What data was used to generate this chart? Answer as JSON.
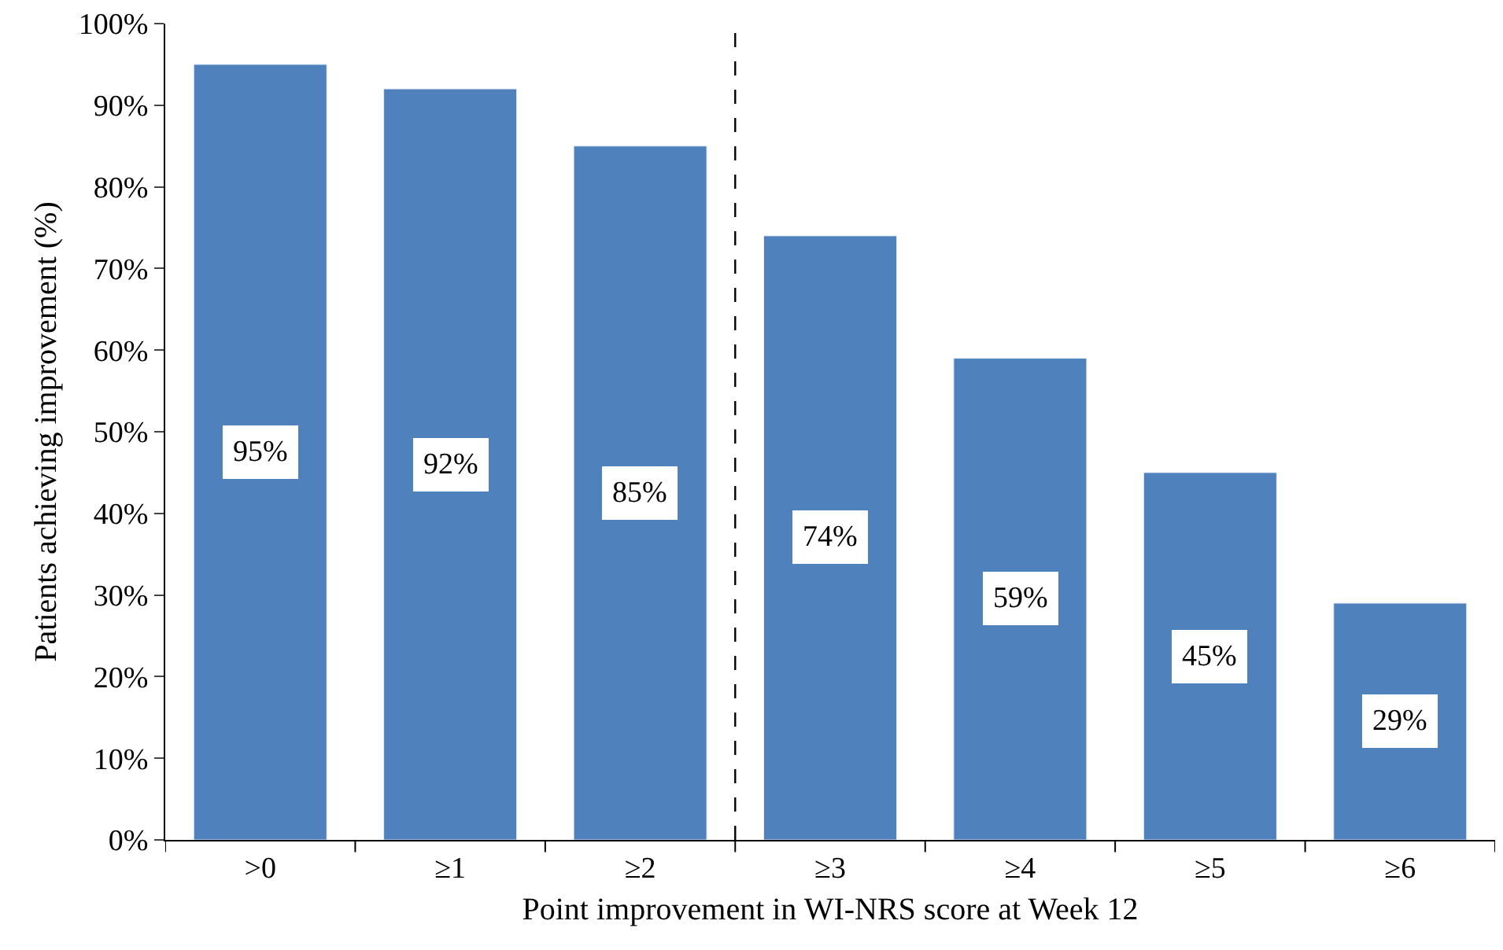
{
  "chart_data": {
    "type": "bar",
    "xlabel": "Point improvement in WI-NRS score at Week 12",
    "ylabel": "Patients achieving improvement (%)",
    "categories": [
      ">0",
      "≥1",
      "≥2",
      "≥3",
      "≥4",
      "≥5",
      "≥6"
    ],
    "values": [
      95,
      92,
      85,
      74,
      59,
      45,
      29
    ],
    "value_labels": [
      "95%",
      "92%",
      "85%",
      "74%",
      "59%",
      "45%",
      "29%"
    ],
    "color": "#4f81bd",
    "ylim": [
      0,
      100
    ],
    "yticks": [
      {
        "value": 0,
        "label": "0%"
      },
      {
        "value": 10,
        "label": "10%"
      },
      {
        "value": 20,
        "label": "20%"
      },
      {
        "value": 30,
        "label": "30%"
      },
      {
        "value": 40,
        "label": "40%"
      },
      {
        "value": 50,
        "label": "50%"
      },
      {
        "value": 60,
        "label": "60%"
      },
      {
        "value": 70,
        "label": "70%"
      },
      {
        "value": 80,
        "label": "80%"
      },
      {
        "value": 90,
        "label": "90%"
      },
      {
        "value": 100,
        "label": "100%"
      }
    ],
    "legend": false
  }
}
